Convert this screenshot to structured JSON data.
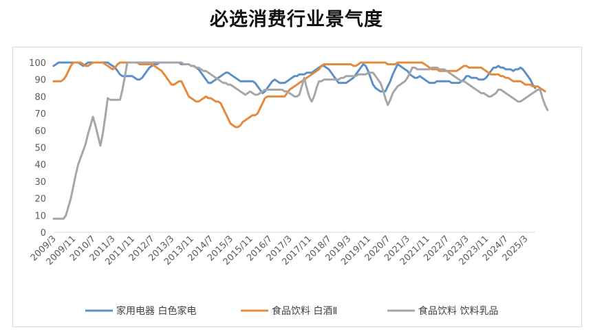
{
  "chart_data": {
    "type": "line",
    "title": "必选消费行业景气度",
    "xlabel": "",
    "ylabel": "",
    "ylim": [
      0,
      100
    ],
    "yticks": [
      0,
      10,
      20,
      30,
      40,
      50,
      60,
      70,
      80,
      90,
      100
    ],
    "grid": false,
    "legend_position": "bottom",
    "x_tick_labels": [
      "2009/3",
      "2009/11",
      "2010/7",
      "2011/3",
      "2011/11",
      "2012/7",
      "2013/3",
      "2013/11",
      "2014/7",
      "2015/3",
      "2015/11",
      "2016/7",
      "2017/3",
      "2017/11",
      "2018/7",
      "2019/3",
      "2019/11",
      "2020/7",
      "2021/3",
      "2021/11",
      "2022/7",
      "2023/3",
      "2023/11",
      "2024/7",
      "2025/3"
    ],
    "x_tick_step": 8,
    "n_points": 197,
    "series": [
      {
        "name": "家用电器 白色家电",
        "color": "#5b8fc7",
        "values": [
          98,
          99,
          100,
          100,
          100,
          100,
          100,
          100,
          100,
          100,
          100,
          99,
          98,
          99,
          100,
          100,
          100,
          100,
          100,
          100,
          100,
          100,
          100,
          99,
          98,
          97,
          95,
          93,
          92,
          92,
          92,
          92,
          92,
          91,
          90,
          90,
          91,
          93,
          95,
          97,
          98,
          99,
          99,
          100,
          100,
          100,
          100,
          100,
          100,
          100,
          100,
          100,
          99,
          99,
          99,
          99,
          98,
          98,
          97,
          96,
          94,
          92,
          90,
          88,
          88,
          89,
          90,
          91,
          92,
          93,
          94,
          94,
          93,
          92,
          91,
          90,
          89,
          89,
          89,
          89,
          89,
          89,
          88,
          86,
          84,
          82,
          83,
          85,
          87,
          89,
          90,
          89,
          88,
          88,
          88,
          89,
          90,
          91,
          92,
          92,
          93,
          93,
          93,
          94,
          94,
          94,
          95,
          96,
          97,
          98,
          98,
          97,
          96,
          94,
          92,
          90,
          88,
          88,
          88,
          88,
          89,
          90,
          91,
          93,
          95,
          97,
          99,
          98,
          95,
          91,
          87,
          85,
          84,
          83,
          83,
          83,
          86,
          89,
          93,
          96,
          99,
          98,
          97,
          96,
          95,
          93,
          92,
          91,
          91,
          92,
          91,
          90,
          89,
          88,
          88,
          88,
          89,
          89,
          89,
          89,
          89,
          89,
          88,
          88,
          88,
          88,
          89,
          90,
          92,
          92,
          91,
          91,
          91,
          90,
          90,
          90,
          91,
          93,
          95,
          97,
          97,
          98,
          97,
          97,
          96,
          96,
          96,
          95,
          96,
          96,
          97,
          96,
          94,
          92,
          90,
          87,
          85
        ]
      },
      {
        "name": "食品饮料 白酒Ⅱ",
        "color": "#e48a3c",
        "values": [
          89,
          89,
          89,
          89,
          90,
          92,
          95,
          98,
          100,
          100,
          100,
          100,
          99,
          98,
          98,
          99,
          100,
          100,
          100,
          100,
          100,
          99,
          98,
          97,
          96,
          97,
          99,
          100,
          100,
          100,
          100,
          100,
          100,
          100,
          100,
          99,
          99,
          99,
          99,
          99,
          99,
          98,
          97,
          96,
          95,
          93,
          91,
          89,
          87,
          87,
          88,
          89,
          89,
          86,
          83,
          80,
          79,
          78,
          77,
          77,
          78,
          79,
          80,
          79,
          79,
          78,
          77,
          77,
          76,
          73,
          70,
          67,
          64,
          63,
          62,
          62,
          63,
          65,
          66,
          67,
          68,
          69,
          69,
          70,
          73,
          76,
          79,
          80,
          80,
          80,
          80,
          80,
          80,
          80,
          80,
          82,
          84,
          85,
          86,
          87,
          88,
          89,
          90,
          91,
          92,
          93,
          94,
          95,
          96,
          98,
          99,
          99,
          99,
          99,
          99,
          99,
          99,
          99,
          99,
          99,
          99,
          99,
          98,
          98,
          99,
          100,
          100,
          100,
          100,
          100,
          100,
          100,
          100,
          100,
          100,
          100,
          99,
          99,
          99,
          99,
          100,
          100,
          100,
          100,
          100,
          100,
          100,
          100,
          100,
          100,
          100,
          99,
          98,
          97,
          96,
          96,
          96,
          95,
          95,
          95,
          95,
          95,
          95,
          95,
          95,
          96,
          97,
          98,
          98,
          97,
          97,
          97,
          97,
          97,
          97,
          96,
          95,
          94,
          93,
          93,
          93,
          93,
          92,
          92,
          91,
          91,
          90,
          89,
          89,
          89,
          89,
          88,
          87,
          87,
          87,
          86,
          86,
          86,
          85,
          84,
          83
        ]
      },
      {
        "name": "食品饮料 饮料乳品",
        "color": "#a6a6a6",
        "values": [
          8,
          8,
          8,
          8,
          8,
          10,
          15,
          20,
          27,
          34,
          40,
          44,
          48,
          52,
          58,
          63,
          68,
          63,
          57,
          51,
          58,
          68,
          79,
          78,
          78,
          78,
          78,
          78,
          84,
          92,
          100,
          100,
          100,
          100,
          100,
          100,
          100,
          100,
          100,
          100,
          100,
          100,
          100,
          100,
          100,
          100,
          100,
          100,
          100,
          100,
          100,
          100,
          100,
          99,
          99,
          99,
          98,
          98,
          97,
          97,
          96,
          95,
          95,
          94,
          93,
          92,
          91,
          90,
          89,
          88,
          88,
          87,
          87,
          86,
          85,
          84,
          83,
          82,
          81,
          82,
          83,
          82,
          81,
          81,
          82,
          83,
          84,
          84,
          84,
          84,
          84,
          84,
          84,
          84,
          83,
          83,
          82,
          81,
          80,
          80,
          81,
          86,
          91,
          85,
          80,
          77,
          80,
          85,
          89,
          89,
          90,
          90,
          90,
          90,
          90,
          90,
          90,
          91,
          91,
          92,
          92,
          92,
          92,
          92,
          93,
          93,
          93,
          93,
          94,
          94,
          94,
          92,
          90,
          88,
          84,
          79,
          75,
          78,
          82,
          84,
          86,
          87,
          88,
          89,
          91,
          94,
          97,
          97,
          96,
          96,
          96,
          96,
          96,
          96,
          97,
          97,
          97,
          96,
          96,
          96,
          95,
          94,
          93,
          92,
          91,
          90,
          89,
          89,
          88,
          87,
          86,
          85,
          84,
          83,
          82,
          82,
          81,
          80,
          80,
          81,
          82,
          84,
          84,
          83,
          82,
          81,
          80,
          79,
          78,
          77,
          77,
          78,
          79,
          80,
          81,
          82,
          83,
          84,
          84,
          79,
          75,
          72
        ]
      }
    ]
  }
}
